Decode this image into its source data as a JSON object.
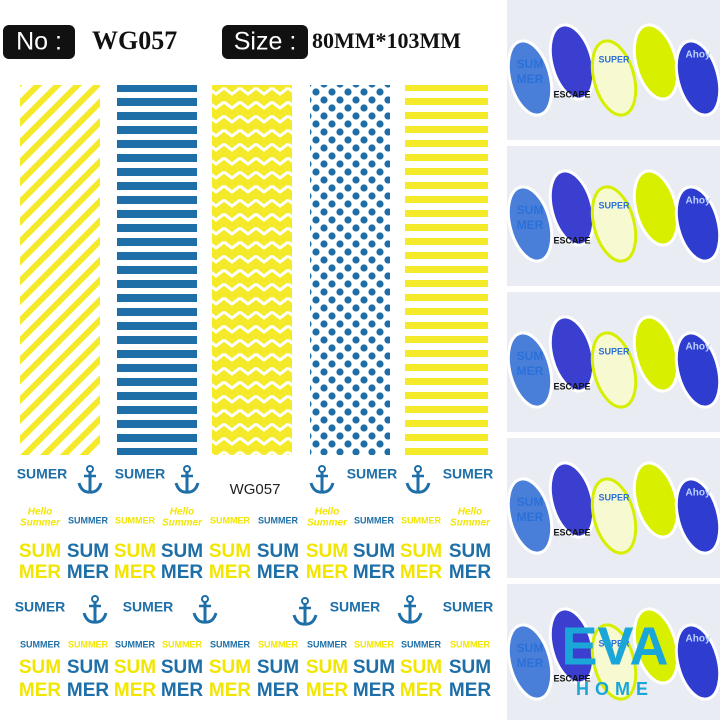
{
  "header": {
    "no_label": "No :",
    "code": "WG057",
    "size_label": "Size :",
    "size": "80MM*103MM"
  },
  "sheet": {
    "code": "WG057",
    "sumer": "SUMER",
    "summer": "SUMMER",
    "sum": "SUM",
    "mer": "MER",
    "hello": "Hello",
    "summer_script": "Summer"
  },
  "photos": {
    "sum": "SUM",
    "mer": "MER",
    "escape": "ESCAPE",
    "super": "SUPER",
    "ahoy": "Ahoy"
  },
  "logo": {
    "brand": "EVA",
    "sub": "HOME"
  }
}
